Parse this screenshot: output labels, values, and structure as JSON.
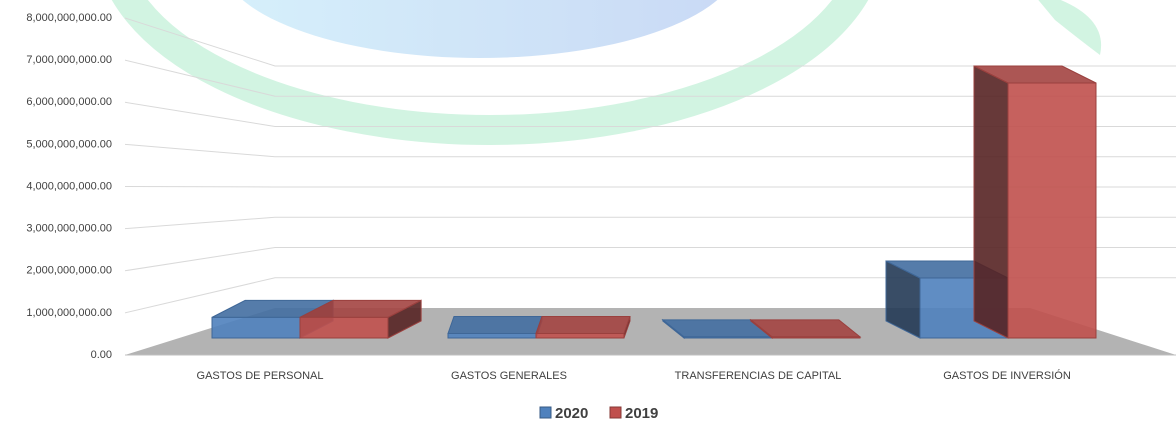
{
  "chart_data": {
    "type": "bar3d",
    "categories": [
      "GASTOS DE PERSONAL",
      "GASTOS GENERALES",
      "TRANSFERENCIAS DE CAPITAL",
      "GASTOS DE INVERSIÓN"
    ],
    "series": [
      {
        "name": "2020",
        "color": "#4f81bd",
        "values": [
          550000000,
          120000000,
          30000000,
          1600000000
        ]
      },
      {
        "name": "2019",
        "color": "#c0504d",
        "values": [
          550000000,
          120000000,
          30000000,
          6800000000
        ]
      }
    ],
    "ylim": [
      0,
      8000000000
    ],
    "yticks": [
      {
        "value": 0,
        "label": "0.00"
      },
      {
        "value": 1000000000,
        "label": "1,000,000,000.00"
      },
      {
        "value": 2000000000,
        "label": "2,000,000,000.00"
      },
      {
        "value": 3000000000,
        "label": "3,000,000,000.00"
      },
      {
        "value": 4000000000,
        "label": "4,000,000,000.00"
      },
      {
        "value": 5000000000,
        "label": "5,000,000,000.00"
      },
      {
        "value": 6000000000,
        "label": "6,000,000,000.00"
      },
      {
        "value": 7000000000,
        "label": "7,000,000,000.00"
      },
      {
        "value": 8000000000,
        "label": "8,000,000,000.00"
      }
    ],
    "grid": true
  }
}
